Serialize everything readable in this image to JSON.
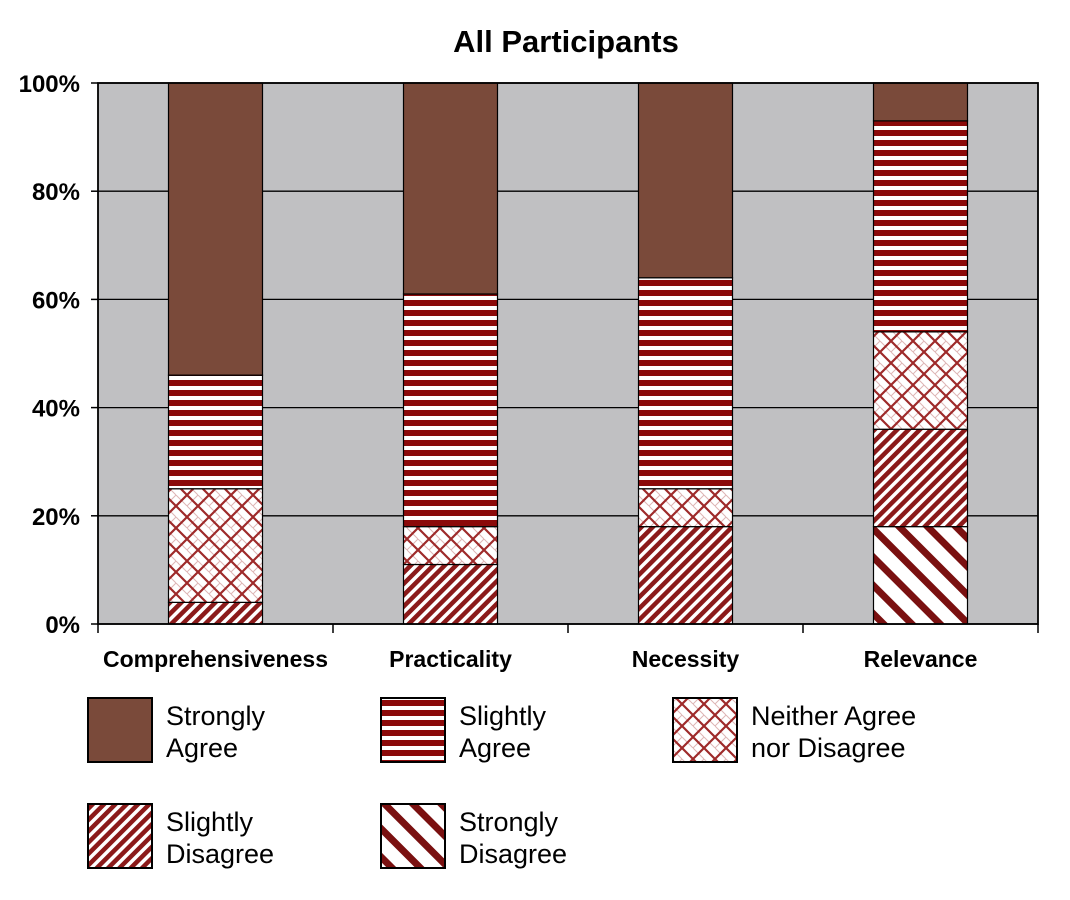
{
  "chart_data": {
    "type": "bar",
    "stacked": true,
    "title": "All Participants",
    "xlabel": "",
    "ylabel": "",
    "categories": [
      "Comprehensiveness",
      "Practicality",
      "Necessity",
      "Relevance"
    ],
    "ylim": [
      0,
      100
    ],
    "yticks": [
      "0%",
      "20%",
      "40%",
      "60%",
      "80%",
      "100%"
    ],
    "grid": true,
    "legend_position": "bottom",
    "series": [
      {
        "name": "Strongly Disagree",
        "legend_lines": [
          "Strongly",
          "Disagree"
        ],
        "pattern": "wide-diagonal",
        "color": "#7a1010",
        "values": [
          0,
          0,
          0,
          18
        ]
      },
      {
        "name": "Slightly Disagree",
        "legend_lines": [
          "Slightly",
          "Disagree"
        ],
        "pattern": "fine-diagonal",
        "color": "#8b1a1a",
        "values": [
          4,
          11,
          18,
          18
        ]
      },
      {
        "name": "Neither Agree nor Disagree",
        "legend_lines": [
          "Neither Agree",
          "nor Disagree"
        ],
        "pattern": "crosshatch",
        "color": "#9e2a2a",
        "values": [
          21,
          7,
          7,
          18
        ]
      },
      {
        "name": "Slightly Agree",
        "legend_lines": [
          "Slightly",
          "Agree"
        ],
        "pattern": "horizontal",
        "color": "#8b0a0a",
        "values": [
          21,
          43,
          39,
          39
        ]
      },
      {
        "name": "Strongly Agree",
        "legend_lines": [
          "Strongly",
          "Agree"
        ],
        "pattern": "solid",
        "color": "#7a4a3a",
        "values": [
          54,
          39,
          36,
          7
        ]
      }
    ],
    "legend_order": [
      "Strongly Agree",
      "Slightly Agree",
      "Neither Agree nor Disagree",
      "Slightly Disagree",
      "Strongly Disagree"
    ],
    "plot_background": "#c0c0c2"
  }
}
